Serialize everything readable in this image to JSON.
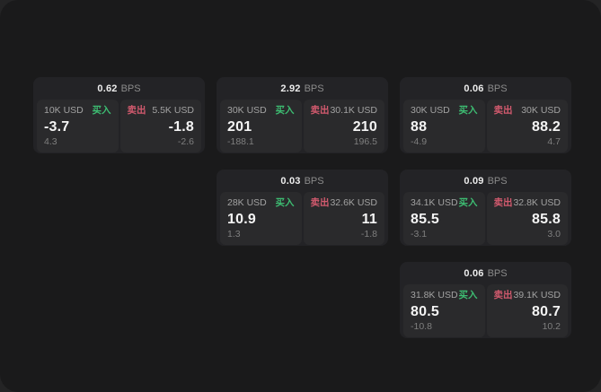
{
  "labels": {
    "bps_unit": "BPS",
    "buy": "买入",
    "sell": "卖出"
  },
  "colors": {
    "buy_green": "#3dbd72",
    "sell_red": "#d25a6e",
    "window_bg": "#1a1a1b",
    "card_bg": "#232326",
    "panel_bg": "#2a2a2c"
  },
  "cards": [
    {
      "row": 1,
      "col": 1,
      "bps": "0.62",
      "buy": {
        "amount": "10K USD",
        "value": "-3.7",
        "delta": "4.3"
      },
      "sell": {
        "amount": "5.5K USD",
        "value": "-1.8",
        "delta": "-2.6"
      }
    },
    {
      "row": 1,
      "col": 2,
      "bps": "2.92",
      "buy": {
        "amount": "30K USD",
        "value": "201",
        "delta": "-188.1"
      },
      "sell": {
        "amount": "30.1K USD",
        "value": "210",
        "delta": "196.5"
      }
    },
    {
      "row": 1,
      "col": 3,
      "bps": "0.06",
      "buy": {
        "amount": "30K USD",
        "value": "88",
        "delta": "-4.9"
      },
      "sell": {
        "amount": "30K USD",
        "value": "88.2",
        "delta": "4.7"
      }
    },
    {
      "row": 2,
      "col": 2,
      "bps": "0.03",
      "buy": {
        "amount": "28K USD",
        "value": "10.9",
        "delta": "1.3"
      },
      "sell": {
        "amount": "32.6K USD",
        "value": "11",
        "delta": "-1.8"
      }
    },
    {
      "row": 2,
      "col": 3,
      "bps": "0.09",
      "buy": {
        "amount": "34.1K USD",
        "value": "85.5",
        "delta": "-3.1"
      },
      "sell": {
        "amount": "32.8K USD",
        "value": "85.8",
        "delta": "3.0"
      }
    },
    {
      "row": 3,
      "col": 3,
      "bps": "0.06",
      "buy": {
        "amount": "31.8K USD",
        "value": "80.5",
        "delta": "-10.8"
      },
      "sell": {
        "amount": "39.1K USD",
        "value": "80.7",
        "delta": "10.2"
      }
    }
  ]
}
